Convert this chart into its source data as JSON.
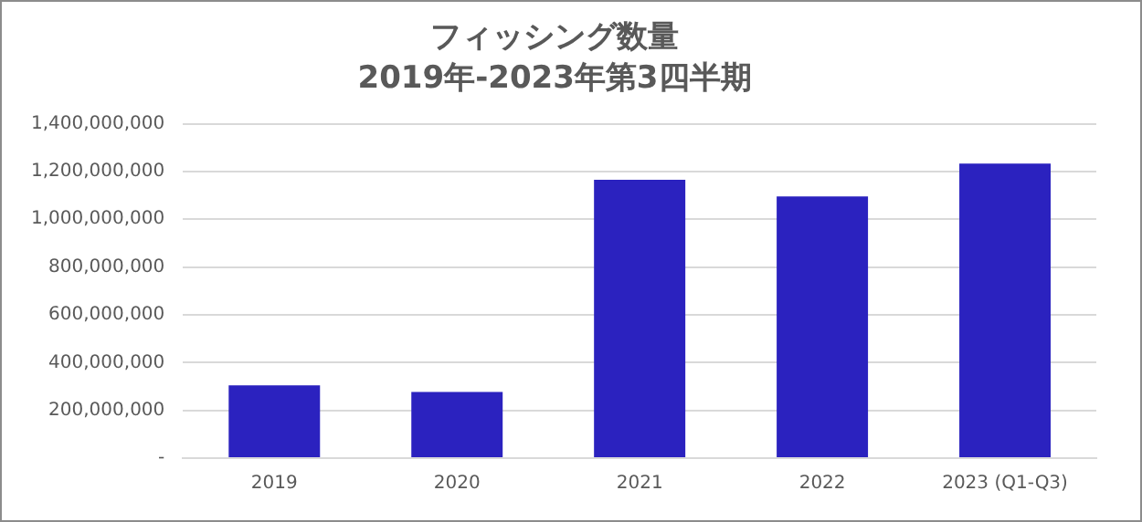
{
  "chart_data": {
    "type": "bar",
    "title": "フィッシング数量",
    "subtitle": "2019年-2023年第3四半期",
    "categories": [
      "2019",
      "2020",
      "2021",
      "2022",
      "2023 (Q1-Q3)"
    ],
    "values": [
      305000000,
      277000000,
      1165000000,
      1096000000,
      1233000000
    ],
    "color": "#2b22bf",
    "ylim": [
      0,
      1400000000
    ],
    "yticks": [
      {
        "value": 0,
        "label": "-"
      },
      {
        "value": 200000000,
        "label": "200,000,000"
      },
      {
        "value": 400000000,
        "label": "400,000,000"
      },
      {
        "value": 600000000,
        "label": "600,000,000"
      },
      {
        "value": 800000000,
        "label": "800,000,000"
      },
      {
        "value": 1000000000,
        "label": "1,000,000,000"
      },
      {
        "value": 1200000000,
        "label": "1,200,000,000"
      },
      {
        "value": 1400000000,
        "label": "1,400,000,000"
      }
    ],
    "grid": "y",
    "legend": false
  }
}
